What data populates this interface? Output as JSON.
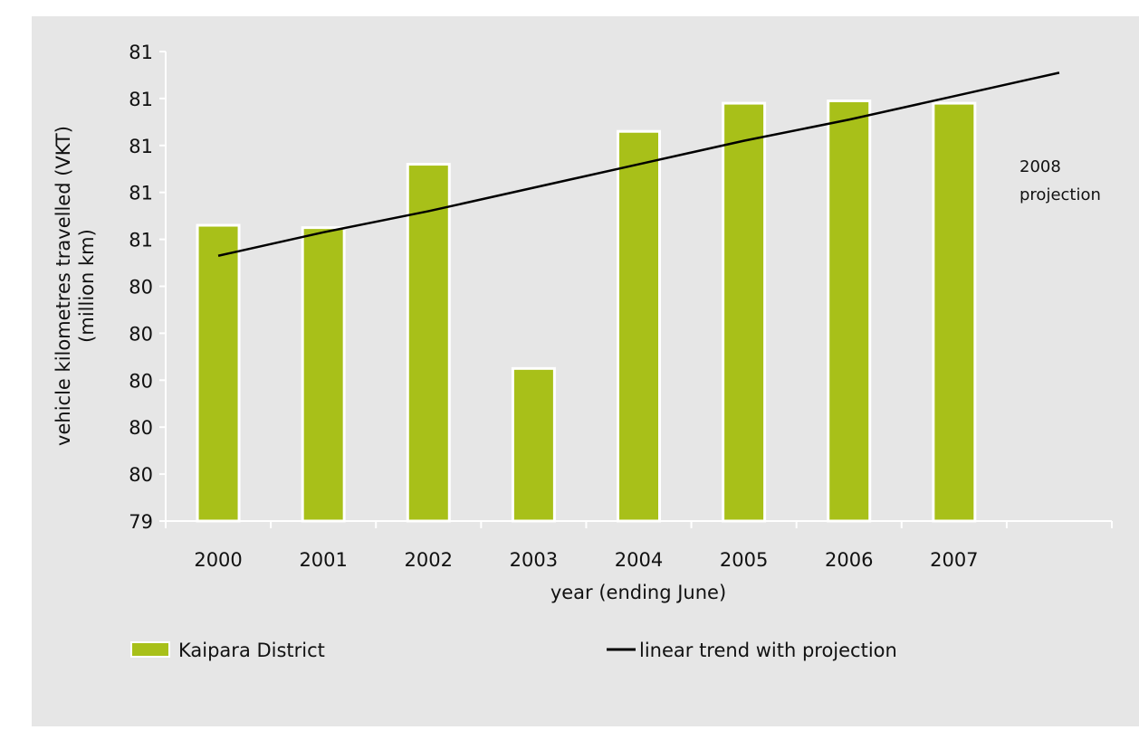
{
  "chart_data": {
    "type": "bar",
    "categories": [
      "2000",
      "2001",
      "2002",
      "2003",
      "2004",
      "2005",
      "2006",
      "2007",
      null
    ],
    "series": [
      {
        "name": "Kaipara District",
        "type": "bar",
        "color": "#a8c019",
        "values": [
          80.66,
          80.65,
          80.92,
          80.05,
          81.06,
          81.18,
          81.19,
          81.18,
          null
        ]
      },
      {
        "name": "linear trend with projection",
        "type": "line",
        "color": "#000000",
        "values": [
          80.53,
          80.63,
          80.72,
          80.82,
          80.92,
          81.02,
          81.11,
          81.21,
          81.31
        ]
      }
    ],
    "annotation": [
      "2008",
      "projection"
    ],
    "x_label": "year (ending June)",
    "y_label": [
      "vehicle kilometres travelled (VKT)",
      "(million km)"
    ],
    "ylim": [
      79.4,
      81.4
    ],
    "yticks": [
      {
        "value": 79.4,
        "label": "79"
      },
      {
        "value": 79.6,
        "label": "80"
      },
      {
        "value": 79.8,
        "label": "80"
      },
      {
        "value": 80.0,
        "label": "80"
      },
      {
        "value": 80.2,
        "label": "80"
      },
      {
        "value": 80.4,
        "label": "80"
      },
      {
        "value": 80.6,
        "label": "81"
      },
      {
        "value": 80.8,
        "label": "81"
      },
      {
        "value": 81.0,
        "label": "81"
      },
      {
        "value": 81.2,
        "label": "81"
      },
      {
        "value": 81.4,
        "label": "81"
      }
    ],
    "legend": "bottom"
  }
}
